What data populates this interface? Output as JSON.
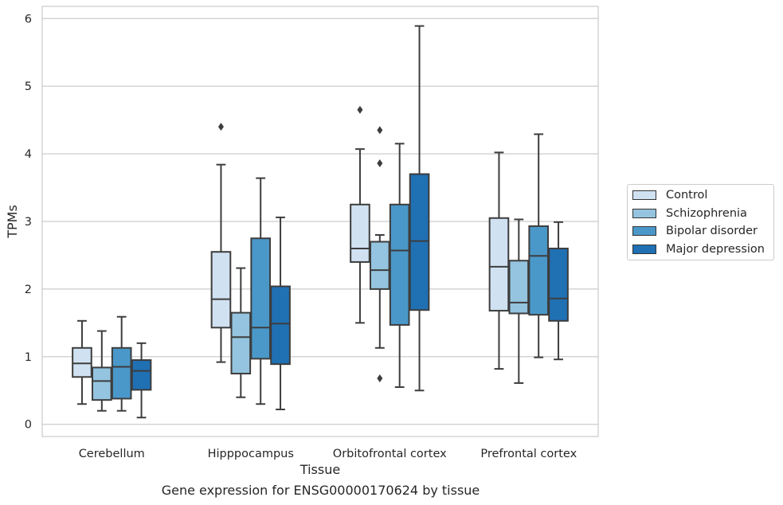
{
  "caption": "Gene expression for ENSG00000170624 by tissue",
  "chart_data": {
    "type": "boxplot",
    "xlabel": "Tissue",
    "ylabel": "TPMs",
    "ylim": [
      -0.18,
      6.18
    ],
    "yticks": [
      0,
      1,
      2,
      3,
      4,
      5,
      6
    ],
    "grid": true,
    "legend_position": "right",
    "categories": [
      "Cerebellum",
      "Hipppocampus",
      "Orbitofrontal cortex",
      "Prefrontal cortex"
    ],
    "series": [
      {
        "name": "Control",
        "color": "#d0e1f2",
        "boxes": [
          {
            "whislo": 0.3,
            "q1": 0.7,
            "med": 0.9,
            "q3": 1.13,
            "whishi": 1.53,
            "fliers": []
          },
          {
            "whislo": 0.92,
            "q1": 1.43,
            "med": 1.85,
            "q3": 2.55,
            "whishi": 3.84,
            "fliers": [
              4.4
            ]
          },
          {
            "whislo": 1.5,
            "q1": 2.4,
            "med": 2.6,
            "q3": 3.25,
            "whishi": 4.07,
            "fliers": [
              4.65
            ]
          },
          {
            "whislo": 0.82,
            "q1": 1.68,
            "med": 2.33,
            "q3": 3.05,
            "whishi": 4.02,
            "fliers": []
          }
        ]
      },
      {
        "name": "Schizophrenia",
        "color": "#94c4df",
        "boxes": [
          {
            "whislo": 0.2,
            "q1": 0.36,
            "med": 0.64,
            "q3": 0.84,
            "whishi": 1.38,
            "fliers": []
          },
          {
            "whislo": 0.4,
            "q1": 0.75,
            "med": 1.29,
            "q3": 1.65,
            "whishi": 2.31,
            "fliers": []
          },
          {
            "whislo": 1.13,
            "q1": 2.0,
            "med": 2.28,
            "q3": 2.7,
            "whishi": 2.8,
            "fliers": [
              4.35,
              3.86,
              0.68
            ]
          },
          {
            "whislo": 0.61,
            "q1": 1.64,
            "med": 1.8,
            "q3": 2.42,
            "whishi": 3.03,
            "fliers": []
          }
        ]
      },
      {
        "name": "Bipolar disorder",
        "color": "#4a98c9",
        "boxes": [
          {
            "whislo": 0.2,
            "q1": 0.38,
            "med": 0.85,
            "q3": 1.13,
            "whishi": 1.59,
            "fliers": []
          },
          {
            "whislo": 0.3,
            "q1": 0.97,
            "med": 1.43,
            "q3": 2.75,
            "whishi": 3.64,
            "fliers": []
          },
          {
            "whislo": 0.55,
            "q1": 1.47,
            "med": 2.57,
            "q3": 3.25,
            "whishi": 4.15,
            "fliers": []
          },
          {
            "whislo": 0.99,
            "q1": 1.62,
            "med": 2.49,
            "q3": 2.93,
            "whishi": 4.29,
            "fliers": []
          }
        ]
      },
      {
        "name": "Major depression",
        "color": "#2070b4",
        "boxes": [
          {
            "whislo": 0.1,
            "q1": 0.51,
            "med": 0.79,
            "q3": 0.95,
            "whishi": 1.2,
            "fliers": []
          },
          {
            "whislo": 0.22,
            "q1": 0.89,
            "med": 1.49,
            "q3": 2.04,
            "whishi": 3.06,
            "fliers": []
          },
          {
            "whislo": 0.5,
            "q1": 1.69,
            "med": 2.71,
            "q3": 3.7,
            "whishi": 5.89,
            "fliers": []
          },
          {
            "whislo": 0.96,
            "q1": 1.53,
            "med": 1.86,
            "q3": 2.6,
            "whishi": 2.99,
            "fliers": []
          }
        ]
      }
    ]
  }
}
